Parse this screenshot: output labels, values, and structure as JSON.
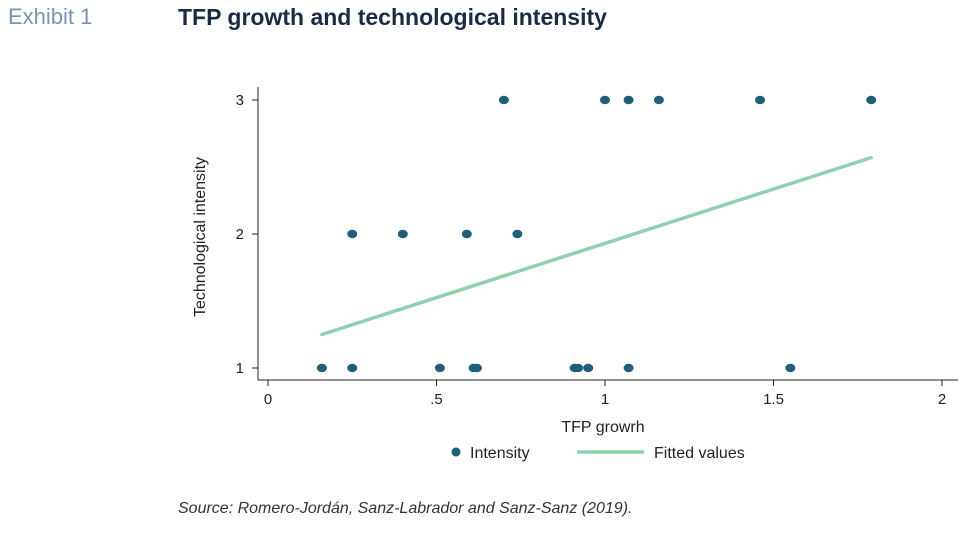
{
  "header": {
    "exhibit_label": "Exhibit 1",
    "title": "TFP growth and technological intensity"
  },
  "footer": {
    "source": "Source: Romero-Jordán, Sanz-Labrador and Sanz-Sanz (2019)."
  },
  "colors": {
    "marker": "#1f5f78",
    "fit_line": "#8fd0b0",
    "axis": "#222222"
  },
  "chart_data": {
    "type": "scatter",
    "xlabel": "TFP growrh",
    "ylabel": "Technological intensity",
    "xlim": [
      -0.02,
      2.05
    ],
    "ylim": [
      0.95,
      3.05
    ],
    "x_ticks": [
      0,
      0.5,
      1,
      1.5,
      2
    ],
    "x_tick_labels": [
      "0",
      ".5",
      "1",
      "1.5",
      "2"
    ],
    "y_ticks": [
      1,
      2,
      3
    ],
    "y_tick_labels": [
      "1",
      "2",
      "3"
    ],
    "grid": false,
    "legend_position": "bottom",
    "series": [
      {
        "name": "Intensity",
        "kind": "scatter",
        "points": [
          {
            "x": 0.16,
            "y": 1
          },
          {
            "x": 0.25,
            "y": 1
          },
          {
            "x": 0.51,
            "y": 1
          },
          {
            "x": 0.61,
            "y": 1
          },
          {
            "x": 0.62,
            "y": 1
          },
          {
            "x": 0.91,
            "y": 1
          },
          {
            "x": 0.92,
            "y": 1
          },
          {
            "x": 0.95,
            "y": 1
          },
          {
            "x": 1.07,
            "y": 1
          },
          {
            "x": 1.55,
            "y": 1
          },
          {
            "x": 0.25,
            "y": 2
          },
          {
            "x": 0.4,
            "y": 2
          },
          {
            "x": 0.59,
            "y": 2
          },
          {
            "x": 0.74,
            "y": 2
          },
          {
            "x": 0.7,
            "y": 3
          },
          {
            "x": 1.0,
            "y": 3
          },
          {
            "x": 1.07,
            "y": 3
          },
          {
            "x": 1.16,
            "y": 3
          },
          {
            "x": 1.46,
            "y": 3
          },
          {
            "x": 1.79,
            "y": 3
          }
        ]
      },
      {
        "name": "Fitted values",
        "kind": "line",
        "points": [
          {
            "x": 0.16,
            "y": 1.25
          },
          {
            "x": 1.79,
            "y": 2.57
          }
        ]
      }
    ]
  }
}
